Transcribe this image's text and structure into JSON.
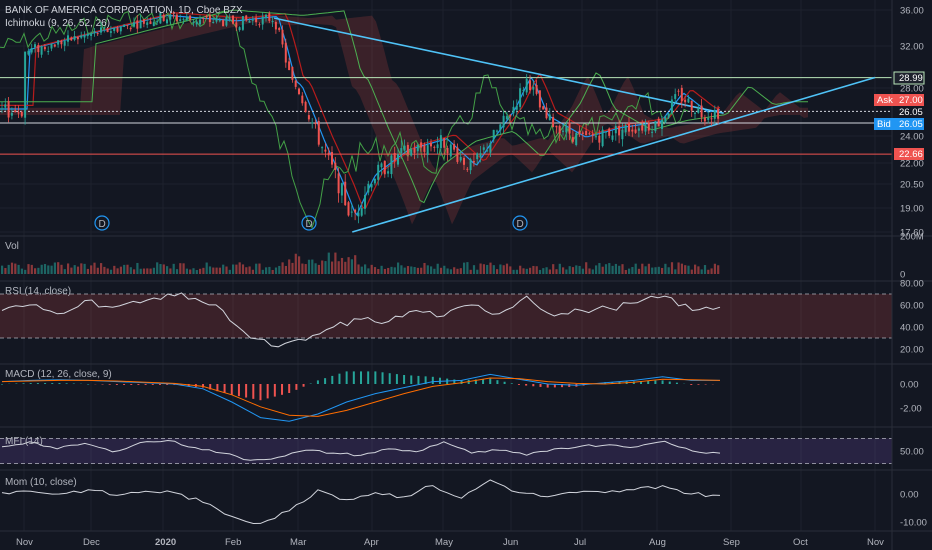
{
  "header": {
    "symbol_title": "BANK OF AMERICA CORPORATION, 1D, Cboe BZX",
    "ichimoku_label": "Ichimoku (9, 26, 52, 26)"
  },
  "panes": {
    "volume_label": "Vol",
    "rsi_label": "RSI (14, close)",
    "macd_label": "MACD (12, 26, close, 9)",
    "mfi_label": "MFI (14)",
    "mom_label": "Mom (10, close)"
  },
  "price_tags": {
    "resistance": "28.99",
    "ask_label": "Ask",
    "ask": "27.00",
    "last": "26.05",
    "bid_label": "Bid",
    "bid": "26.05",
    "support": "22.66"
  },
  "dividend_marker": "D",
  "colors": {
    "background": "#131722",
    "grid": "#1e222d",
    "up": "#26a69a",
    "down": "#ef5350",
    "trendline": "#4fc3f7",
    "resistance_line": "#b9e6b9",
    "support_line": "#ef5350",
    "ask_tag": "#ef5350",
    "bid_tag": "#2196f3",
    "last_tag": "#26a69a",
    "rsi_band": "#7e57c2"
  },
  "chart_data": [
    {
      "type": "candlestick",
      "title": "BANK OF AMERICA CORPORATION, 1D, Cboe BZX",
      "x_ticks": [
        "Nov",
        "Dec",
        "2020",
        "Feb",
        "Mar",
        "Apr",
        "May",
        "Jun",
        "Jul",
        "Aug",
        "Sep",
        "Oct",
        "Nov"
      ],
      "y_ticks": [
        "36.00",
        "32.00",
        "28.00",
        "24.00",
        "22.00",
        "20.50",
        "19.00",
        "17.60"
      ],
      "ylim": [
        17.6,
        36.0
      ],
      "scale": "log",
      "close_series": [
        {
          "x": "Nov",
          "y": 31.4
        },
        {
          "x": "Dec",
          "y": 33.3
        },
        {
          "x": "2020",
          "y": 35.2
        },
        {
          "x": "Feb",
          "y": 34.6
        },
        {
          "x": "Feb 20",
          "y": 35.1
        },
        {
          "x": "Feb 28",
          "y": 28.5
        },
        {
          "x": "Mar",
          "y": 28.0
        },
        {
          "x": "Mar 10",
          "y": 23.5
        },
        {
          "x": "Mar 23",
          "y": 18.3
        },
        {
          "x": "Apr",
          "y": 21.0
        },
        {
          "x": "Apr 15",
          "y": 22.8
        },
        {
          "x": "May",
          "y": 23.6
        },
        {
          "x": "May 14",
          "y": 21.6
        },
        {
          "x": "Jun",
          "y": 26.0
        },
        {
          "x": "Jun 8",
          "y": 28.9
        },
        {
          "x": "Jun 15",
          "y": 25.5
        },
        {
          "x": "Jul",
          "y": 23.7
        },
        {
          "x": "Jul 15",
          "y": 24.5
        },
        {
          "x": "Aug",
          "y": 25.0
        },
        {
          "x": "Aug 10",
          "y": 27.4
        },
        {
          "x": "Aug 20",
          "y": 25.8
        },
        {
          "x": "Aug 28",
          "y": 26.05
        }
      ],
      "horizontal_lines": [
        28.99,
        26.05,
        22.66
      ],
      "trendlines": [
        {
          "from": {
            "x": "Feb 20",
            "y": 35.1
          },
          "to": {
            "x": "Aug 28",
            "y": 25.9
          }
        },
        {
          "from": {
            "x": "Mar 23",
            "y": 17.6
          },
          "to": {
            "x": "Nov",
            "y": 29.0
          }
        }
      ],
      "dividends": [
        "Dec",
        "Mar",
        "Jun"
      ]
    },
    {
      "type": "bar",
      "title": "Vol",
      "y_ticks": [
        "200M",
        "0"
      ]
    },
    {
      "type": "line",
      "title": "RSI (14, close)",
      "y_ticks": [
        "80.00",
        "60.00",
        "40.00",
        "20.00"
      ],
      "band": [
        30,
        70
      ],
      "values": [
        55,
        60,
        52,
        64,
        58,
        62,
        70,
        66,
        55,
        30,
        22,
        28,
        40,
        47,
        45,
        55,
        50,
        60,
        52,
        68,
        50,
        55,
        57,
        62,
        68,
        55,
        58
      ]
    },
    {
      "type": "line",
      "title": "MACD (12, 26, close, 9)",
      "y_ticks": [
        "0.00",
        "-2.00"
      ],
      "macd": [
        0.2,
        0.3,
        0.35,
        0.3,
        0.2,
        0.1,
        0.0,
        -0.4,
        -1.5,
        -2.8,
        -3.1,
        -2.5,
        -1.5,
        -0.8,
        -0.3,
        0.2,
        0.3,
        0.8,
        0.4,
        0.0,
        -0.1,
        0.1,
        0.3,
        0.6,
        0.3,
        0.3
      ],
      "signal": [
        0.2,
        0.25,
        0.3,
        0.3,
        0.25,
        0.15,
        0.05,
        -0.2,
        -0.9,
        -1.9,
        -2.6,
        -2.7,
        -2.2,
        -1.5,
        -0.8,
        -0.2,
        0.1,
        0.5,
        0.45,
        0.2,
        0.05,
        0.0,
        0.15,
        0.4,
        0.35,
        0.3
      ]
    },
    {
      "type": "line",
      "title": "MFI (14)",
      "y_ticks": [
        "50.00"
      ],
      "band": [
        20,
        80
      ],
      "values": [
        60,
        72,
        55,
        68,
        48,
        70,
        75,
        58,
        45,
        28,
        35,
        52,
        45,
        40,
        55,
        48,
        72,
        45,
        52,
        40,
        55,
        62,
        65,
        60,
        73,
        50,
        45
      ]
    },
    {
      "type": "line",
      "title": "Mom (10, close)",
      "y_ticks": [
        "0.00",
        "-10.00"
      ],
      "values": [
        0.5,
        1.0,
        0.0,
        1.5,
        -0.5,
        1.0,
        0.5,
        -3.0,
        -8.0,
        -10.5,
        -6.0,
        1.5,
        -2.0,
        0.5,
        -1.0,
        3.0,
        -1.5,
        5.0,
        0.5,
        -1.0,
        0.5,
        0.5,
        1.5,
        3.0,
        0.0,
        -0.5
      ]
    }
  ]
}
